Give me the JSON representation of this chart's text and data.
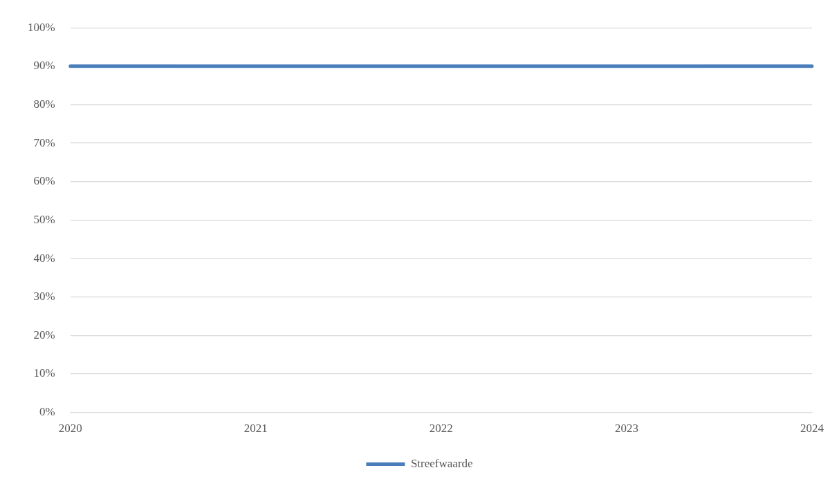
{
  "chart_data": {
    "type": "line",
    "categories": [
      "2020",
      "2021",
      "2022",
      "2023",
      "2024"
    ],
    "series": [
      {
        "name": "Streefwaarde",
        "color": "#4a7ebb",
        "values": [
          0.9,
          0.9,
          0.9,
          0.9,
          0.9
        ]
      }
    ],
    "ylim": [
      0,
      1
    ],
    "yticks": [
      {
        "value": 0,
        "label": "0%"
      },
      {
        "value": 0.1,
        "label": "10%"
      },
      {
        "value": 0.2,
        "label": "20%"
      },
      {
        "value": 0.3,
        "label": "30%"
      },
      {
        "value": 0.4,
        "label": "40%"
      },
      {
        "value": 0.5,
        "label": "50%"
      },
      {
        "value": 0.6,
        "label": "60%"
      },
      {
        "value": 0.7,
        "label": "70%"
      },
      {
        "value": 0.8,
        "label": "80%"
      },
      {
        "value": 0.9,
        "label": "90%"
      },
      {
        "value": 1,
        "label": "100%"
      }
    ],
    "grid": "y",
    "legend": "bottom",
    "marker": "none",
    "line_style": "solid"
  }
}
